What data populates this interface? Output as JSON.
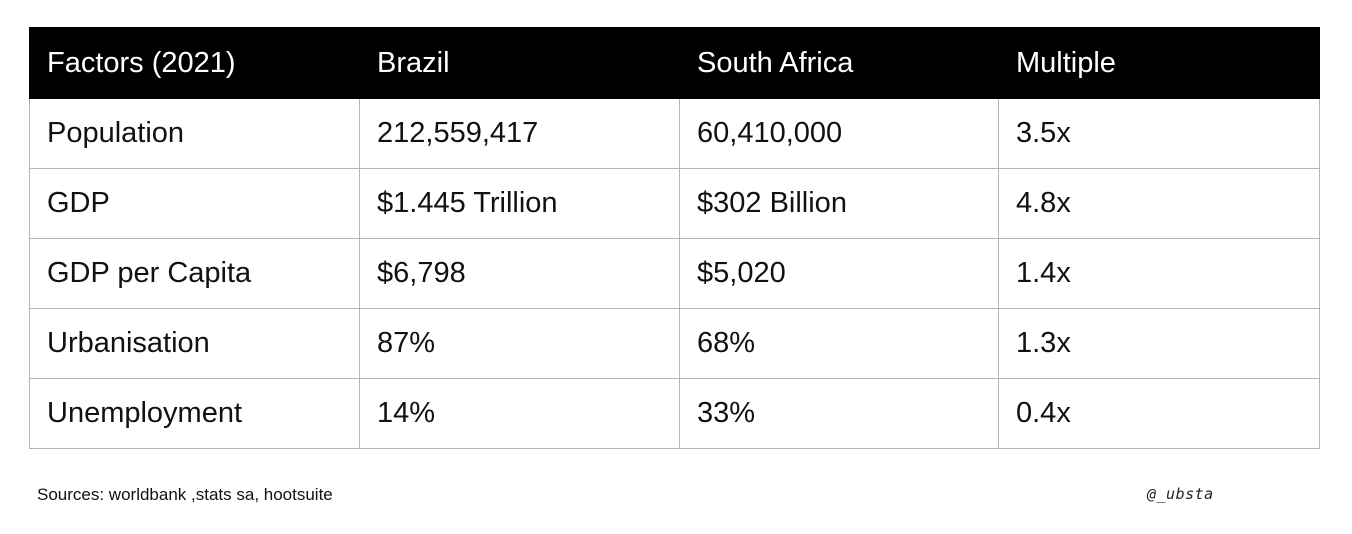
{
  "table": {
    "headers": [
      "Factors (2021)",
      "Brazil",
      "South Africa",
      "Multiple"
    ],
    "rows": [
      [
        "Population",
        "212,559,417",
        "60,410,000",
        "3.5x"
      ],
      [
        "GDP",
        "$1.445 Trillion",
        "$302 Billion",
        "4.8x"
      ],
      [
        "GDP per Capita",
        "$6,798",
        "$5,020",
        "1.4x"
      ],
      [
        "Urbanisation",
        "87%",
        "68%",
        "1.3x"
      ],
      [
        "Unemployment",
        "14%",
        "33%",
        "0.4x"
      ]
    ]
  },
  "footer": {
    "sources": "Sources: worldbank ,stats sa, hootsuite",
    "handle": "@_ubsta"
  }
}
